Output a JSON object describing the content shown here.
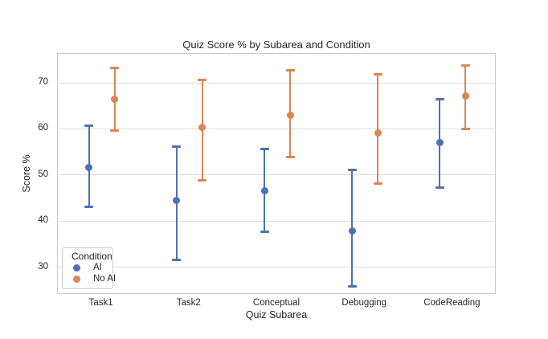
{
  "chart_data": {
    "type": "scatter",
    "subtype": "pointplot-with-error-bars",
    "title": "Quiz Score % by Subarea and Condition",
    "xlabel": "Quiz Subarea",
    "ylabel": "Score %",
    "categories": [
      "Task1",
      "Task2",
      "Conceptual",
      "Debugging",
      "CodeReading"
    ],
    "yticks": [
      30,
      40,
      50,
      60,
      70
    ],
    "ylim": [
      24,
      76.3
    ],
    "grid": "horizontal",
    "legend": {
      "title": "Condition",
      "position": "lower-left"
    },
    "series": [
      {
        "name": "AI",
        "color": "#4C72B0",
        "points": [
          {
            "category": "Task1",
            "mean": 51.7,
            "lo": 43.1,
            "hi": 60.7
          },
          {
            "category": "Task2",
            "mean": 44.4,
            "lo": 31.6,
            "hi": 56.1
          },
          {
            "category": "Conceptual",
            "mean": 46.6,
            "lo": 37.6,
            "hi": 55.7
          },
          {
            "category": "Debugging",
            "mean": 37.9,
            "lo": 25.9,
            "hi": 51.1
          },
          {
            "category": "CodeReading",
            "mean": 57.1,
            "lo": 47.2,
            "hi": 66.5
          }
        ]
      },
      {
        "name": "No AI",
        "color": "#DD8452",
        "points": [
          {
            "category": "Task1",
            "mean": 66.5,
            "lo": 59.7,
            "hi": 73.2
          },
          {
            "category": "Task2",
            "mean": 60.3,
            "lo": 48.8,
            "hi": 70.6
          },
          {
            "category": "Conceptual",
            "mean": 62.9,
            "lo": 53.9,
            "hi": 72.7
          },
          {
            "category": "Debugging",
            "mean": 59.1,
            "lo": 48.2,
            "hi": 71.8
          },
          {
            "category": "CodeReading",
            "mean": 67.1,
            "lo": 60.0,
            "hi": 73.7
          }
        ]
      }
    ]
  }
}
